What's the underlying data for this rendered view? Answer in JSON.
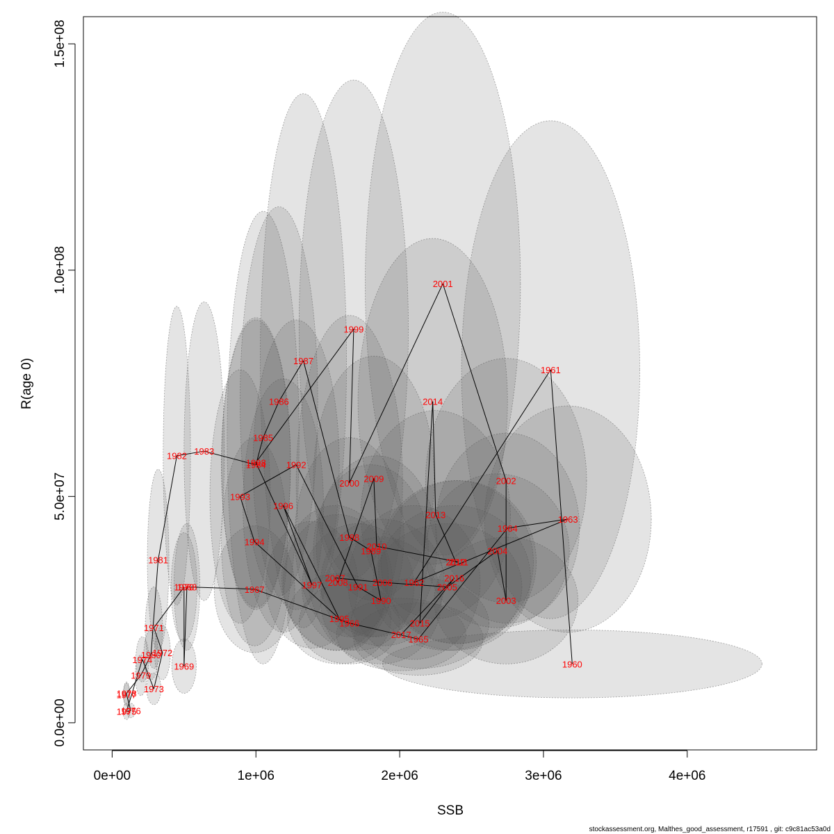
{
  "chart_data": {
    "type": "scatter",
    "title": "",
    "xlabel": "SSB",
    "ylabel": "R(age 0)",
    "xlim": [
      -200000,
      4900000
    ],
    "ylim": [
      -6000000,
      156000000
    ],
    "xticks": [
      0,
      1000000,
      2000000,
      3000000,
      4000000
    ],
    "xtick_labels": [
      "0e+00",
      "1e+06",
      "2e+06",
      "3e+06",
      "4e+06"
    ],
    "yticks": [
      0,
      50000000,
      100000000,
      150000000
    ],
    "ytick_labels": [
      "0.0e+00",
      "5.0e+07",
      "1.0e+08",
      "1.5e+08"
    ],
    "grid": false,
    "footer": "stockassessment.org, Malthes_good_assessment, r17591 , git: c9c81ac53a0d",
    "points": [
      {
        "year": "1960",
        "x": 3200000,
        "y": 13000000,
        "ex": 1320000,
        "ey": 7500000
      },
      {
        "year": "1961",
        "x": 3050000,
        "y": 78000000,
        "ex": 620000,
        "ey": 55000000
      },
      {
        "year": "1962",
        "x": 2100000,
        "y": 31000000,
        "ex": 460000,
        "ey": 17000000
      },
      {
        "year": "1963",
        "x": 3170000,
        "y": 45000000,
        "ex": 580000,
        "ey": 25000000
      },
      {
        "year": "1964",
        "x": 2750000,
        "y": 43000000,
        "ex": 500000,
        "ey": 21000000
      },
      {
        "year": "1965",
        "x": 2130000,
        "y": 18500000,
        "ex": 450000,
        "ey": 8000000
      },
      {
        "year": "1966",
        "x": 1650000,
        "y": 22000000,
        "ex": 350000,
        "ey": 9000000
      },
      {
        "year": "1967",
        "x": 990000,
        "y": 29500000,
        "ex": 280000,
        "ey": 14000000
      },
      {
        "year": "1968",
        "x": 520000,
        "y": 30000000,
        "ex": 90000,
        "ey": 14000000
      },
      {
        "year": "1969",
        "x": 500000,
        "y": 12500000,
        "ex": 85000,
        "ey": 6000000
      },
      {
        "year": "1970",
        "x": 500000,
        "y": 30000000,
        "ex": 90000,
        "ey": 12000000
      },
      {
        "year": "1971",
        "x": 290000,
        "y": 21000000,
        "ex": 60000,
        "ey": 9000000
      },
      {
        "year": "1972",
        "x": 350000,
        "y": 15500000,
        "ex": 55000,
        "ey": 6000000
      },
      {
        "year": "1973",
        "x": 290000,
        "y": 7500000,
        "ex": 50000,
        "ey": 3500000
      },
      {
        "year": "1974",
        "x": 210000,
        "y": 14000000,
        "ex": 45000,
        "ey": 5000000
      },
      {
        "year": "1975",
        "x": 100000,
        "y": 2500000,
        "ex": 25000,
        "ey": 1800000
      },
      {
        "year": "1976",
        "x": 130000,
        "y": 2700000,
        "ex": 30000,
        "ey": 1600000
      },
      {
        "year": "1977",
        "x": 100000,
        "y": 6200000,
        "ex": 22000,
        "ey": 2500000
      },
      {
        "year": "1978",
        "x": 100000,
        "y": 6500000,
        "ex": 22000,
        "ey": 2500000
      },
      {
        "year": "1979",
        "x": 200000,
        "y": 10500000,
        "ex": 40000,
        "ey": 4500000
      },
      {
        "year": "1980",
        "x": 270000,
        "y": 15000000,
        "ex": 50000,
        "ey": 5500000
      },
      {
        "year": "1981",
        "x": 320000,
        "y": 36000000,
        "ex": 75000,
        "ey": 20000000
      },
      {
        "year": "1982",
        "x": 450000,
        "y": 59000000,
        "ex": 95000,
        "ey": 33000000
      },
      {
        "year": "1983",
        "x": 640000,
        "y": 60000000,
        "ex": 140000,
        "ey": 33000000
      },
      {
        "year": "1984",
        "x": 1000000,
        "y": 57000000,
        "ex": 240000,
        "ey": 32000000
      },
      {
        "year": "1985",
        "x": 1050000,
        "y": 63000000,
        "ex": 250000,
        "ey": 50000000
      },
      {
        "year": "1986",
        "x": 1160000,
        "y": 71000000,
        "ex": 270000,
        "ey": 43000000
      },
      {
        "year": "1987",
        "x": 1330000,
        "y": 80000000,
        "ex": 300000,
        "ey": 59000000
      },
      {
        "year": "1988",
        "x": 1650000,
        "y": 41000000,
        "ex": 380000,
        "ey": 22000000
      },
      {
        "year": "1989",
        "x": 1800000,
        "y": 38000000,
        "ex": 400000,
        "ey": 19000000
      },
      {
        "year": "1990",
        "x": 1870000,
        "y": 27000000,
        "ex": 420000,
        "ey": 14000000
      },
      {
        "year": "1991",
        "x": 1710000,
        "y": 30000000,
        "ex": 390000,
        "ey": 14000000
      },
      {
        "year": "1992",
        "x": 1280000,
        "y": 57000000,
        "ex": 300000,
        "ey": 32000000
      },
      {
        "year": "1993",
        "x": 890000,
        "y": 50000000,
        "ex": 210000,
        "ey": 28000000
      },
      {
        "year": "1994",
        "x": 990000,
        "y": 40000000,
        "ex": 230000,
        "ey": 23000000
      },
      {
        "year": "1995",
        "x": 1580000,
        "y": 23000000,
        "ex": 360000,
        "ey": 10000000
      },
      {
        "year": "1996",
        "x": 1190000,
        "y": 48000000,
        "ex": 280000,
        "ey": 28000000
      },
      {
        "year": "1997",
        "x": 1390000,
        "y": 30500000,
        "ex": 320000,
        "ey": 14000000
      },
      {
        "year": "1998",
        "x": 1000000,
        "y": 57500000,
        "ex": 240000,
        "ey": 32000000
      },
      {
        "year": "1999",
        "x": 1680000,
        "y": 87000000,
        "ex": 380000,
        "ey": 55000000
      },
      {
        "year": "2000",
        "x": 1650000,
        "y": 53000000,
        "ex": 370000,
        "ey": 37000000
      },
      {
        "year": "2001",
        "x": 2300000,
        "y": 97000000,
        "ex": 540000,
        "ey": 60000000
      },
      {
        "year": "2002",
        "x": 2740000,
        "y": 53500000,
        "ex": 560000,
        "ey": 27000000
      },
      {
        "year": "2003",
        "x": 2740000,
        "y": 27000000,
        "ex": 500000,
        "ey": 14000000
      },
      {
        "year": "2004",
        "x": 2680000,
        "y": 38000000,
        "ex": 500000,
        "ey": 17000000
      },
      {
        "year": "2005",
        "x": 2330000,
        "y": 30000000,
        "ex": 520000,
        "ey": 14000000
      },
      {
        "year": "2006",
        "x": 1880000,
        "y": 31000000,
        "ex": 430000,
        "ey": 14000000
      },
      {
        "year": "2007",
        "x": 1550000,
        "y": 32000000,
        "ex": 370000,
        "ey": 16000000
      },
      {
        "year": "2008",
        "x": 1570000,
        "y": 31000000,
        "ex": 380000,
        "ey": 15000000
      },
      {
        "year": "2009",
        "x": 1820000,
        "y": 54000000,
        "ex": 420000,
        "ey": 27000000
      },
      {
        "year": "2010",
        "x": 1840000,
        "y": 39000000,
        "ex": 420000,
        "ey": 20000000
      },
      {
        "year": "2011",
        "x": 2410000,
        "y": 35500000,
        "ex": 540000,
        "ey": 18000000
      },
      {
        "year": "2012",
        "x": 2390000,
        "y": 35500000,
        "ex": 540000,
        "ey": 18000000
      },
      {
        "year": "2013",
        "x": 2250000,
        "y": 46000000,
        "ex": 520000,
        "ey": 23000000
      },
      {
        "year": "2014",
        "x": 2230000,
        "y": 71000000,
        "ex": 520000,
        "ey": 36000000
      },
      {
        "year": "2015",
        "x": 2140000,
        "y": 22000000,
        "ex": 480000,
        "ey": 10000000
      },
      {
        "year": "2016",
        "x": 2380000,
        "y": 32000000,
        "ex": 530000,
        "ey": 16000000
      },
      {
        "year": "2017",
        "x": 2010000,
        "y": 19500000,
        "ex": 450000,
        "ey": 8000000
      }
    ]
  }
}
